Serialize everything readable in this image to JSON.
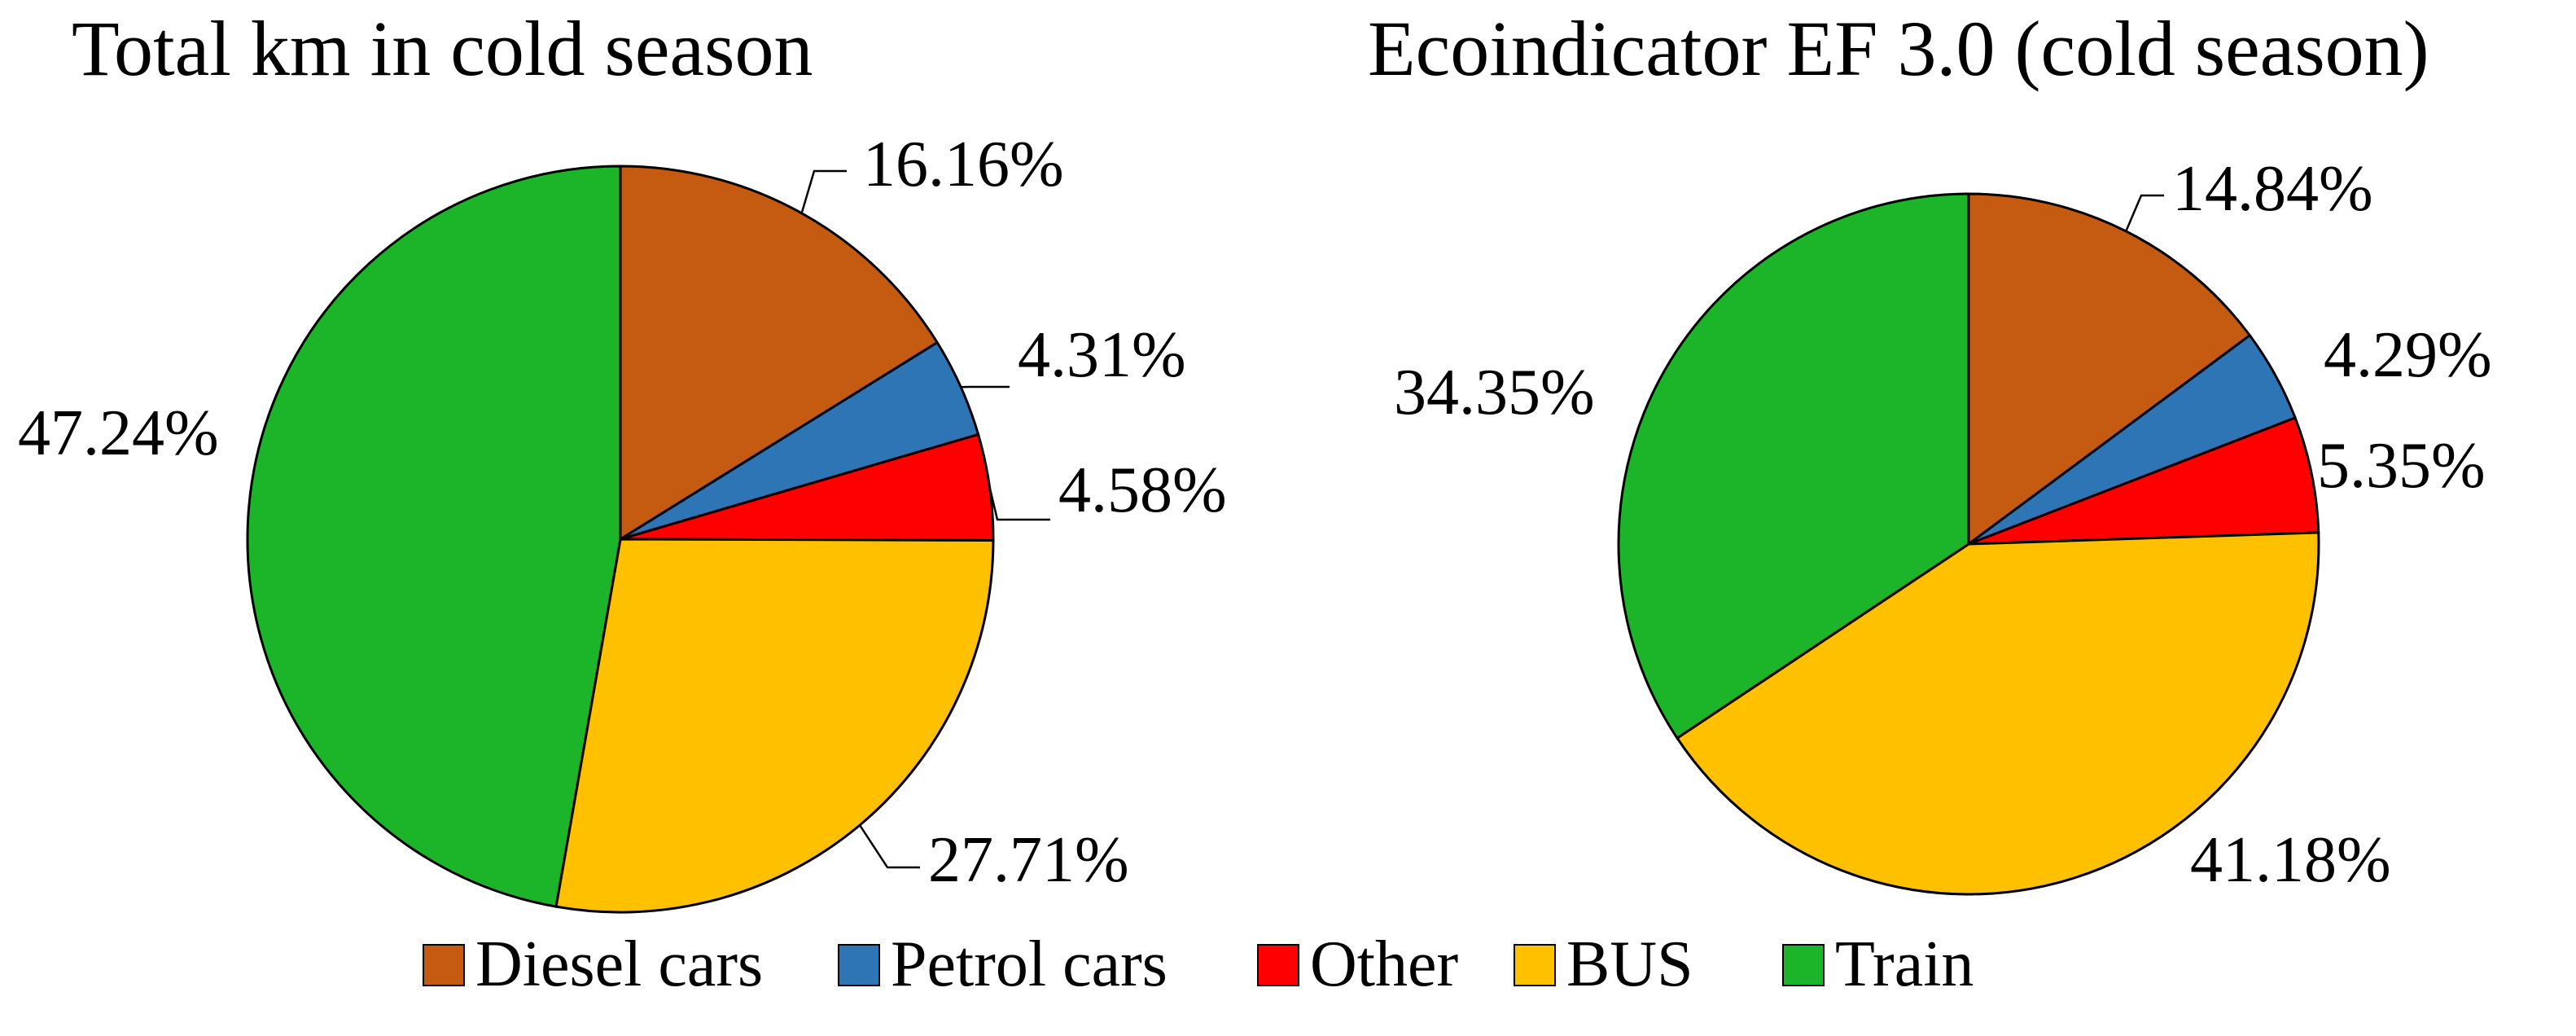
{
  "chart_data": [
    {
      "type": "pie",
      "title": "Total km in cold season",
      "categories": [
        "Diesel cars",
        "Petrol cars",
        "Other",
        "BUS",
        "Train"
      ],
      "values": [
        16.16,
        4.31,
        4.58,
        27.71,
        47.24
      ],
      "labels": [
        "16.16%",
        "4.31%",
        "4.58%",
        "27.71%",
        "47.24%"
      ],
      "colors": [
        "#C55A11",
        "#2E75B6",
        "#FF0000",
        "#FFC000",
        "#1CB52A"
      ],
      "start": "12 o'clock",
      "direction": "clockwise"
    },
    {
      "type": "pie",
      "title": "Ecoindicator EF 3.0 (cold season)",
      "categories": [
        "Diesel cars",
        "Petrol cars",
        "Other",
        "BUS",
        "Train"
      ],
      "values": [
        14.84,
        4.29,
        5.35,
        41.18,
        34.35
      ],
      "labels": [
        "14.84%",
        "4.29%",
        "5.35%",
        "41.18%",
        "34.35%"
      ],
      "colors": [
        "#C55A11",
        "#2E75B6",
        "#FF0000",
        "#FFC000",
        "#1CB52A"
      ],
      "start": "12 o'clock",
      "direction": "clockwise"
    }
  ],
  "legend": {
    "position": "bottom",
    "items": [
      {
        "label": "Diesel cars",
        "color": "#C55A11"
      },
      {
        "label": "Petrol cars",
        "color": "#2E75B6"
      },
      {
        "label": "Other",
        "color": "#FF0000"
      },
      {
        "label": "BUS",
        "color": "#FFC000"
      },
      {
        "label": "Train",
        "color": "#1CB52A"
      }
    ]
  }
}
